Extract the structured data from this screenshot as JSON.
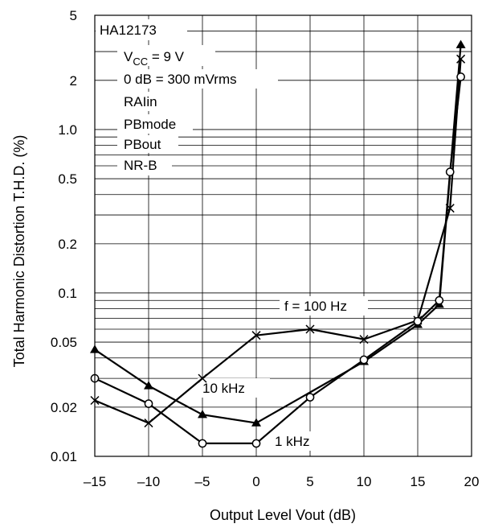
{
  "chart_data": {
    "type": "line",
    "xlabel": "Output Level Vout (dB)",
    "ylabel": "Total Harmonic Distortion T.H.D. (%)",
    "xlim": [
      -15,
      20
    ],
    "ylim": [
      0.01,
      5
    ],
    "yscale": "log",
    "grid": true,
    "x_ticks": [
      -15,
      -10,
      -5,
      0,
      5,
      10,
      15,
      20
    ],
    "x_tick_labels": [
      "–15",
      "–10",
      "–5",
      "0",
      "5",
      "10",
      "15",
      "20"
    ],
    "y_ticks": [
      0.01,
      0.02,
      0.05,
      0.1,
      0.2,
      0.5,
      1.0,
      2,
      5
    ],
    "y_tick_labels": [
      "0.01",
      "0.02",
      "0.05",
      "0.1",
      "0.2",
      "0.5",
      "1.0",
      "2",
      "5"
    ],
    "conditions": {
      "device": "HA12173",
      "vcc_prefix": "V",
      "vcc_sub": "CC",
      "vcc_value": " = 9 V",
      "ref": "0 dB = 300 mVrms",
      "line1": "RAIin",
      "line2": "PBmode",
      "line3": "PBout",
      "line4": "NR-B"
    },
    "series": [
      {
        "label": "f = 100 Hz",
        "marker": "x",
        "x": [
          -15,
          -10,
          -5,
          0,
          5,
          10,
          15,
          18,
          19
        ],
        "y": [
          0.022,
          0.016,
          0.03,
          0.055,
          0.06,
          0.052,
          0.068,
          0.33,
          2.7
        ]
      },
      {
        "label": "10 kHz",
        "marker": "triangle",
        "x": [
          -15,
          -10,
          -5,
          0,
          10,
          15,
          17,
          19
        ],
        "y": [
          0.045,
          0.027,
          0.018,
          0.016,
          0.038,
          0.064,
          0.085,
          3.3
        ]
      },
      {
        "label": "1 kHz",
        "marker": "circle",
        "x": [
          -15,
          -10,
          -5,
          0,
          5,
          10,
          15,
          17,
          18,
          19
        ],
        "y": [
          0.03,
          0.021,
          0.012,
          0.012,
          0.023,
          0.039,
          0.067,
          0.09,
          0.55,
          2.1
        ]
      }
    ]
  }
}
